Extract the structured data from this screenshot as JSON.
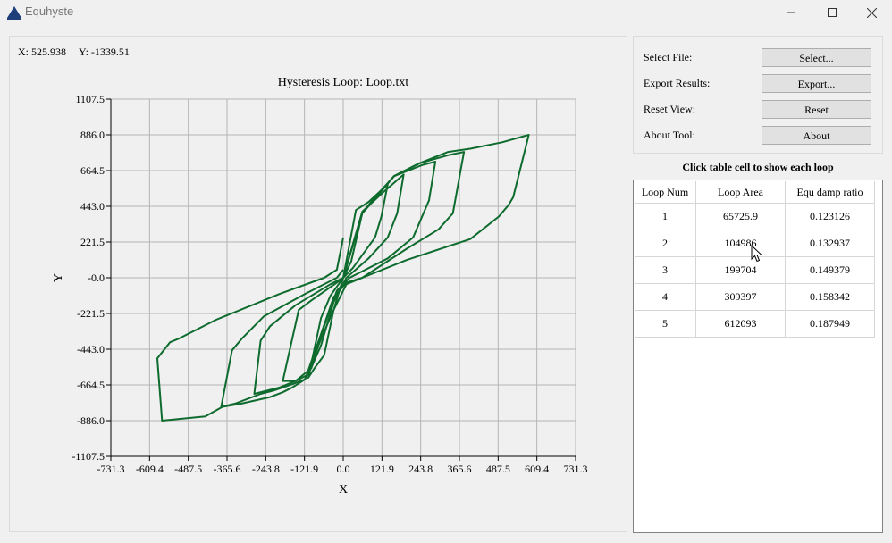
{
  "window": {
    "title": "Equhyste",
    "minimize_icon": "minimize-icon",
    "maximize_icon": "maximize-icon",
    "close_icon": "close-icon"
  },
  "coords": {
    "x_label": "X: 525.938",
    "y_label": "Y: -1339.51"
  },
  "controls": {
    "select_file": {
      "label": "Select File:",
      "button": "Select..."
    },
    "export": {
      "label": "Export Results:",
      "button": "Export..."
    },
    "reset": {
      "label": "Reset View:",
      "button": "Reset"
    },
    "about": {
      "label": "About Tool:",
      "button": "About"
    }
  },
  "table": {
    "caption": "Click table cell to show each loop",
    "headers": [
      "Loop Num",
      "Loop Area",
      "Equ damp ratio"
    ],
    "rows": [
      [
        "1",
        "65725.9",
        "0.123126"
      ],
      [
        "2",
        "104986",
        "0.132937"
      ],
      [
        "3",
        "199704",
        "0.149379"
      ],
      [
        "4",
        "309397",
        "0.158342"
      ],
      [
        "5",
        "612093",
        "0.187949"
      ]
    ]
  },
  "chart_data": {
    "type": "line",
    "title": "Hysteresis Loop: Loop.txt",
    "xlabel": "X",
    "ylabel": "Y",
    "xlim": [
      -731.3,
      731.3
    ],
    "ylim": [
      -1107.5,
      1107.5
    ],
    "x_ticks": [
      "-731.3",
      "-609.4",
      "-487.5",
      "-365.6",
      "-243.8",
      "-121.9",
      "0.0",
      "121.9",
      "243.8",
      "365.6",
      "487.5",
      "609.4",
      "731.3"
    ],
    "y_ticks": [
      "1107.5",
      "886.0",
      "664.5",
      "443.0",
      "221.5",
      "-0.0",
      "-221.5",
      "-443.0",
      "-664.5",
      "-886.0",
      "-1107.5"
    ],
    "grid": true,
    "color": "#0e6b2e",
    "series": [
      {
        "x": [
          0,
          25,
          60,
          100,
          160,
          240,
          330,
          400,
          500,
          584,
          535,
          520,
          490,
          400,
          200,
          60,
          10,
          -30,
          -70,
          -120,
          -160,
          -190,
          -230,
          -320,
          -380,
          -434,
          -570,
          -585,
          -545,
          -520,
          -400,
          -200,
          -60,
          -20,
          0
        ],
        "y": [
          0,
          100,
          400,
          500,
          630,
          710,
          780,
          800,
          840,
          886,
          500,
          450,
          380,
          240,
          110,
          0,
          -30,
          -120,
          -350,
          -630,
          -680,
          -710,
          -740,
          -780,
          -800,
          -860,
          -886,
          -500,
          -400,
          -380,
          -260,
          -100,
          0,
          50,
          250
        ]
      },
      {
        "x": [
          0,
          60,
          100,
          160,
          240,
          330,
          380,
          345,
          300,
          200,
          60,
          10,
          -30,
          -70,
          -120,
          -160,
          -220,
          -260,
          -340,
          -384,
          -350,
          -320,
          -250,
          -120,
          -20,
          0
        ],
        "y": [
          0,
          400,
          490,
          630,
          710,
          760,
          780,
          400,
          300,
          180,
          0,
          -40,
          -200,
          -380,
          -630,
          -660,
          -700,
          -720,
          -780,
          -800,
          -450,
          -380,
          -240,
          -100,
          0,
          50
        ]
      },
      {
        "x": [
          0,
          60,
          100,
          160,
          250,
          290,
          270,
          220,
          140,
          20,
          -20,
          -60,
          -100,
          -150,
          -200,
          -280,
          -260,
          -230,
          -150,
          -40,
          0
        ],
        "y": [
          0,
          400,
          490,
          630,
          700,
          720,
          480,
          250,
          120,
          0,
          -80,
          -300,
          -560,
          -640,
          -680,
          -720,
          -390,
          -300,
          -170,
          -40,
          0
        ]
      },
      {
        "x": [
          0,
          60,
          120,
          190,
          170,
          140,
          80,
          10,
          -30,
          -70,
          -110,
          -150,
          -190,
          -140,
          -100,
          -20,
          0
        ],
        "y": [
          0,
          410,
          520,
          640,
          400,
          250,
          120,
          0,
          -150,
          -420,
          -600,
          -640,
          -640,
          -200,
          -140,
          -30,
          0
        ]
      },
      {
        "x": [
          0,
          40,
          80,
          140,
          120,
          100,
          30,
          0,
          -30,
          -60,
          -90,
          -110,
          -70,
          -40,
          0
        ],
        "y": [
          0,
          420,
          470,
          580,
          380,
          250,
          60,
          0,
          -200,
          -480,
          -560,
          -620,
          -250,
          -110,
          0
        ]
      }
    ]
  }
}
